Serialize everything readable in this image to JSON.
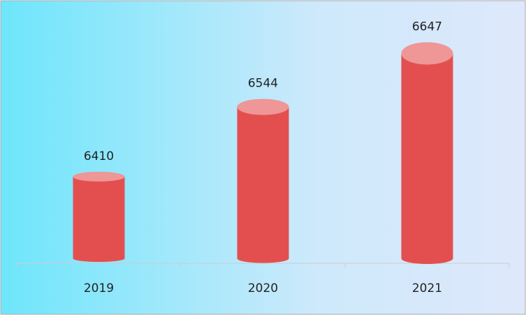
{
  "chart_data": {
    "type": "cylinder-bar",
    "categories": [
      "2019",
      "2020",
      "2021"
    ],
    "values": [
      6410,
      6544,
      6647
    ],
    "color": "#e34f4f",
    "top_color": "#ef9696",
    "ylim": [
      6250,
      6700
    ]
  }
}
